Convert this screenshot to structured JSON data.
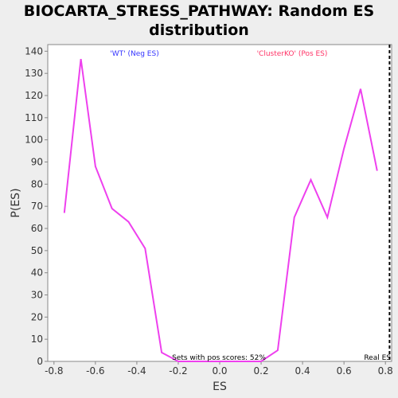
{
  "chart_data": {
    "type": "line",
    "title_line1": "BIOCARTA_STRESS_PATHWAY: Random ES",
    "title_line2": "distribution",
    "xlabel": "ES",
    "ylabel": "P(ES)",
    "xlim": [
      -0.83,
      0.83
    ],
    "ylim": [
      0,
      143
    ],
    "xticks": [
      -0.8,
      -0.6,
      -0.4,
      -0.2,
      0.0,
      0.2,
      0.4,
      0.6,
      0.8
    ],
    "xtick_labels": [
      "-0.8",
      "-0.6",
      "-0.4",
      "-0.2",
      "0.0",
      "0.2",
      "0.4",
      "0.6",
      "0.8"
    ],
    "yticks": [
      0,
      10,
      20,
      30,
      40,
      50,
      60,
      70,
      80,
      90,
      100,
      110,
      120,
      130,
      140
    ],
    "ytick_labels": [
      "0",
      "10",
      "20",
      "30",
      "40",
      "50",
      "60",
      "70",
      "80",
      "90",
      "100",
      "110",
      "120",
      "130",
      "140"
    ],
    "grid": false,
    "series": [
      {
        "color": "#ee40ee",
        "x": [
          -0.75,
          -0.67,
          -0.6,
          -0.52,
          -0.44,
          -0.36,
          -0.28,
          -0.2,
          0.2,
          0.28,
          0.36,
          0.44,
          0.52,
          0.6,
          0.68,
          0.76
        ],
        "y": [
          67,
          136.5,
          88,
          69,
          63,
          51,
          4,
          0,
          0,
          5,
          65,
          82,
          65,
          96,
          123,
          86
        ]
      }
    ],
    "real_es": 0.82,
    "annotations": {
      "neg_label": "'WT' (Neg ES)",
      "neg_color": "#3333ff",
      "pos_label": "'ClusterKO' (Pos ES)",
      "pos_color": "#ff3366",
      "pos_scores": "Sets with pos scores: 52%",
      "real_es_label": "Real ES"
    }
  }
}
